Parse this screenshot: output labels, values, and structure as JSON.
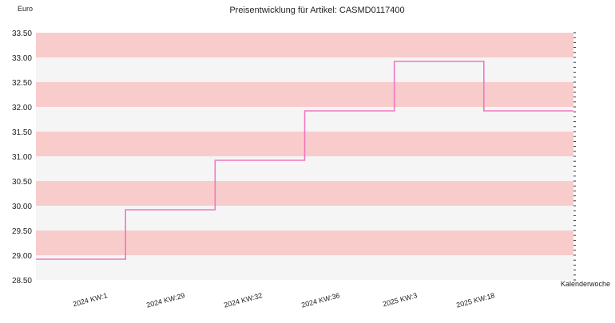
{
  "chart_data": {
    "type": "line",
    "step": true,
    "title": "Preisentwicklung für Artikel: CASMD0117400",
    "ylabel": "Euro",
    "xlabel": "Kalenderwoche",
    "ylim": [
      28.5,
      33.5
    ],
    "yticks": [
      "28.50",
      "29.00",
      "29.50",
      "30.00",
      "30.50",
      "31.00",
      "31.50",
      "32.00",
      "32.50",
      "33.00",
      "33.50"
    ],
    "xticks": [
      "2024 KW:1",
      "2024 KW:29",
      "2024 KW:32",
      "2024 KW:36",
      "2025 KW:3",
      "2025 KW:18"
    ],
    "band_colors": [
      "#f9cccc",
      "#f5f5f5"
    ],
    "line_color": "#f077c0",
    "series": [
      {
        "values": [
          28.92,
          29.92,
          30.92,
          31.92,
          32.92,
          31.92
        ]
      }
    ]
  }
}
